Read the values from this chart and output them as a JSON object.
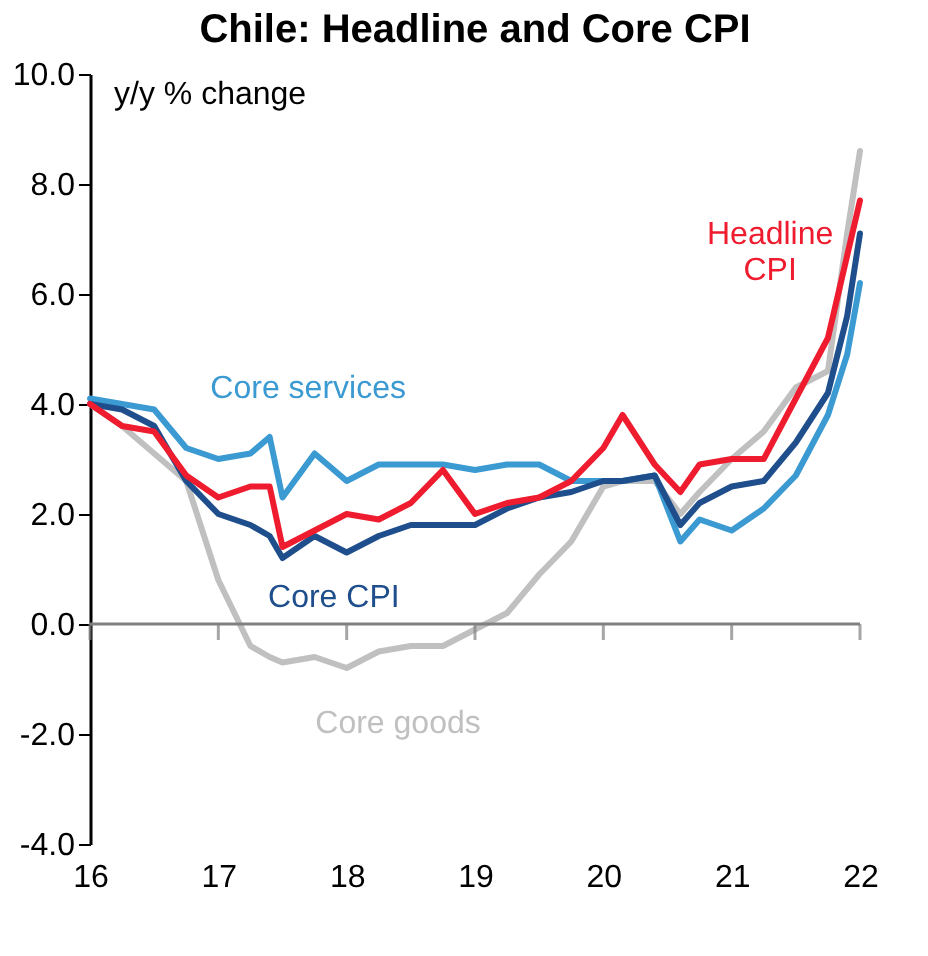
{
  "chart_data": {
    "type": "line",
    "title": "Chile: Headline and Core CPI",
    "ylabel": "y/y % change",
    "x": [
      16.0,
      16.25,
      16.5,
      16.75,
      17.0,
      17.25,
      17.4,
      17.5,
      17.75,
      18.0,
      18.25,
      18.5,
      18.75,
      19.0,
      19.25,
      19.5,
      19.75,
      20.0,
      20.15,
      20.4,
      20.6,
      20.75,
      21.0,
      21.25,
      21.5,
      21.75,
      21.9,
      22.0
    ],
    "series": [
      {
        "name": "Core goods",
        "color": "#c0c0c0",
        "values": [
          4.0,
          3.6,
          3.1,
          2.6,
          0.8,
          -0.4,
          -0.6,
          -0.7,
          -0.6,
          -0.8,
          -0.5,
          -0.4,
          -0.4,
          -0.1,
          0.2,
          0.9,
          1.5,
          2.5,
          2.6,
          2.6,
          2.0,
          2.4,
          3.0,
          3.5,
          4.3,
          4.6,
          7.1,
          8.6
        ]
      },
      {
        "name": "Core services",
        "color": "#3b9ad2",
        "values": [
          4.1,
          4.0,
          3.9,
          3.2,
          3.0,
          3.1,
          3.4,
          2.3,
          3.1,
          2.6,
          2.9,
          2.9,
          2.9,
          2.8,
          2.9,
          2.9,
          2.6,
          2.6,
          2.6,
          2.7,
          1.5,
          1.9,
          1.7,
          2.1,
          2.7,
          3.8,
          4.9,
          6.2
        ]
      },
      {
        "name": "Core CPI",
        "color": "#1f4e8c",
        "values": [
          4.0,
          3.9,
          3.6,
          2.6,
          2.0,
          1.8,
          1.6,
          1.2,
          1.6,
          1.3,
          1.6,
          1.8,
          1.8,
          1.8,
          2.1,
          2.3,
          2.4,
          2.6,
          2.6,
          2.7,
          1.8,
          2.2,
          2.5,
          2.6,
          3.3,
          4.2,
          5.6,
          7.1
        ]
      },
      {
        "name": "Headline CPI",
        "color": "#ee1c2e",
        "values": [
          4.0,
          3.6,
          3.5,
          2.7,
          2.3,
          2.5,
          2.5,
          1.4,
          1.7,
          2.0,
          1.9,
          2.2,
          2.8,
          2.0,
          2.2,
          2.3,
          2.6,
          3.2,
          3.8,
          2.9,
          2.4,
          2.9,
          3.0,
          3.0,
          4.1,
          5.2,
          6.7,
          7.7
        ]
      }
    ],
    "xlim": [
      16,
      22
    ],
    "xticks": [
      16,
      17,
      18,
      19,
      20,
      21,
      22
    ],
    "ylim": [
      -4,
      10
    ],
    "yticks": [
      {
        "value": -4,
        "label": "-4.0"
      },
      {
        "value": -2,
        "label": "-2.0"
      },
      {
        "value": 0,
        "label": "0.0"
      },
      {
        "value": 2,
        "label": "2.0"
      },
      {
        "value": 4,
        "label": "4.0"
      },
      {
        "value": 6,
        "label": "6.0"
      },
      {
        "value": 8,
        "label": "8.0"
      },
      {
        "value": 10,
        "label": "10.0"
      }
    ],
    "legend": false
  }
}
